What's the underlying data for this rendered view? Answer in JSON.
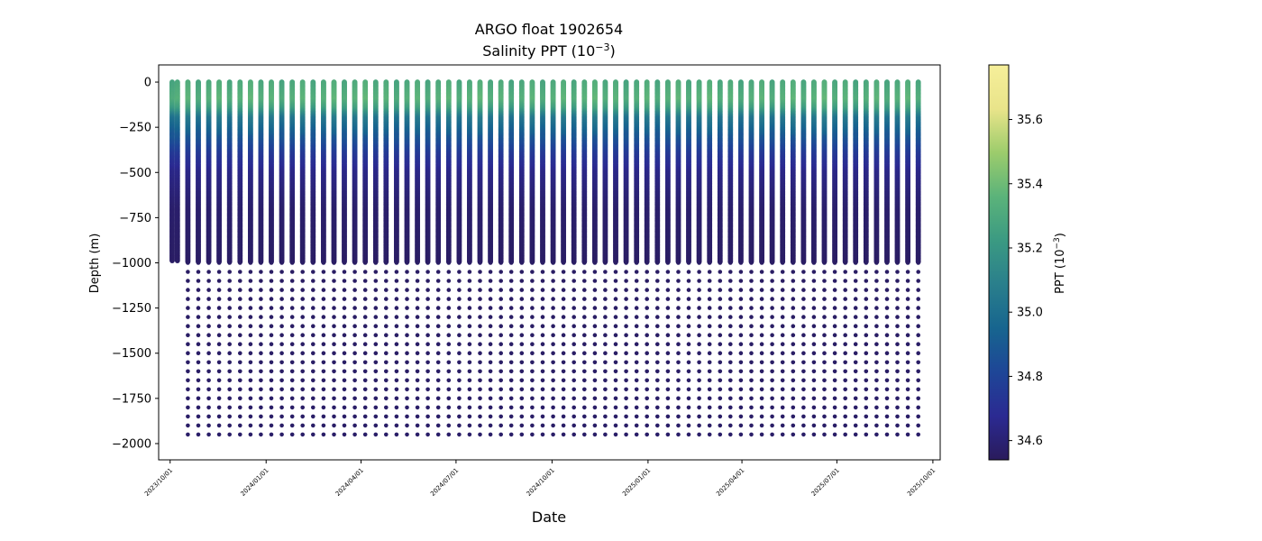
{
  "chart_data": {
    "type": "scatter",
    "title": "ARGO float 1902654",
    "subtitle_prefix": "Salinity PPT (10",
    "subtitle_exp": "−3",
    "subtitle_suffix": ")",
    "xlabel": "Date",
    "ylabel": "Depth (m)",
    "x_ticks": [
      "2023/10/01",
      "2024/01/01",
      "2024/04/01",
      "2024/07/01",
      "2024/10/01",
      "2025/01/01",
      "2025/04/01",
      "2025/07/01",
      "2025/10/01"
    ],
    "xlim": [
      "2023/09/20",
      "2025/10/08"
    ],
    "y_ticks": [
      0,
      -250,
      -500,
      -750,
      -1000,
      -1250,
      -1500,
      -1750,
      -2000
    ],
    "ylim": [
      -2090,
      95
    ],
    "grid": false,
    "marker": "circle",
    "profile_start": "2023/10/03",
    "profile_end": "2025/09/09",
    "profile_count": 73,
    "profile_interval_days": 10,
    "shallow_profile_dates": [
      "2023/10/03",
      "2023/10/08"
    ],
    "shallow_profile_max_depth": -990,
    "deep_profile_max_depth": -1980,
    "dense_sampling_to": -1000,
    "deep_sampling_step": 50,
    "salinity_profile_typical": [
      {
        "depth": 0,
        "salinity": 35.3
      },
      {
        "depth": -100,
        "salinity": 35.35
      },
      {
        "depth": -150,
        "salinity": 35.25
      },
      {
        "depth": -200,
        "salinity": 35.05
      },
      {
        "depth": -300,
        "salinity": 34.9
      },
      {
        "depth": -400,
        "salinity": 34.75
      },
      {
        "depth": -500,
        "salinity": 34.65
      },
      {
        "depth": -700,
        "salinity": 34.58
      },
      {
        "depth": -1000,
        "salinity": 34.56
      },
      {
        "depth": -2000,
        "salinity": 34.57
      }
    ],
    "colorbar": {
      "label_prefix": "PPT (10",
      "label_exp": "−3",
      "label_suffix": ")",
      "colormap": "haline",
      "range": [
        34.54,
        35.77
      ],
      "ticks": [
        "34.6",
        "34.8",
        "35.0",
        "35.2",
        "35.4",
        "35.6"
      ],
      "colors": [
        "#2a1b5c",
        "#2b2a92",
        "#1e4697",
        "#17658f",
        "#2a7f8c",
        "#3b9a82",
        "#5bb37a",
        "#9ccc6c",
        "#e9e48a",
        "#f6ef9a"
      ]
    }
  }
}
